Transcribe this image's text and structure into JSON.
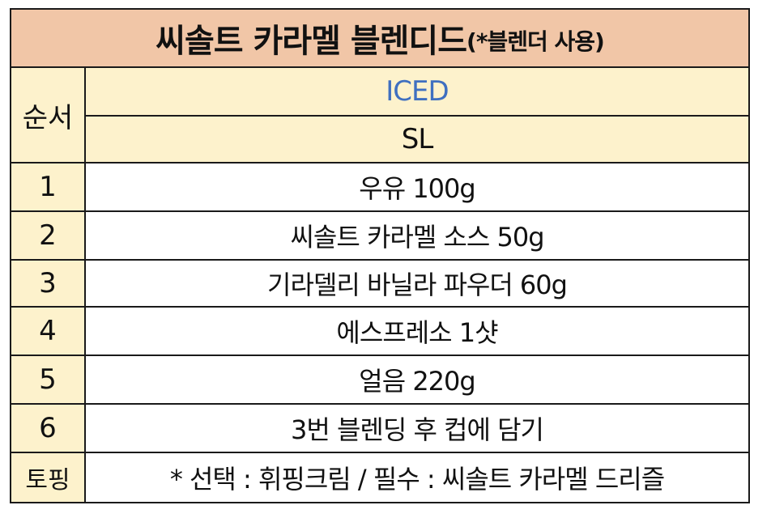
{
  "title": {
    "main": "씨솔트 카라멜 블렌디드",
    "sub": "(*블렌더 사용)"
  },
  "header": {
    "order_label": "순서",
    "type_label": "ICED",
    "size_label": "SL"
  },
  "steps": [
    {
      "no": "1",
      "text": "우유 100g"
    },
    {
      "no": "2",
      "text": "씨솔트 카라멜 소스 50g"
    },
    {
      "no": "3",
      "text": "기라델리 바닐라 파우더 60g"
    },
    {
      "no": "4",
      "text": "에스프레소 1샷"
    },
    {
      "no": "5",
      "text": "얼음 220g"
    },
    {
      "no": "6",
      "text": "3번 블렌딩 후 컵에 담기"
    }
  ],
  "topping": {
    "label": "토핑",
    "text": "* 선택 : 휘핑크림 / 필수 : 씨솔트 카라멜 드리즐"
  },
  "colors": {
    "title_bg": "#f1c6a7",
    "cream_bg": "#fdf2cc",
    "iced_text": "#3f6fc0"
  }
}
